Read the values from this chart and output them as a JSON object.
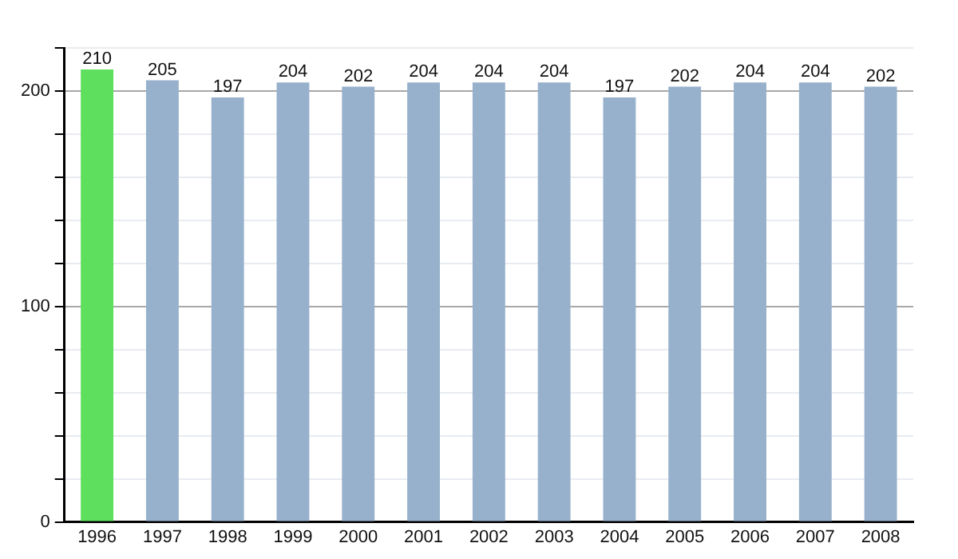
{
  "chart_data": {
    "type": "bar",
    "categories": [
      "1996",
      "1997",
      "1998",
      "1999",
      "2000",
      "2001",
      "2002",
      "2003",
      "2004",
      "2005",
      "2006",
      "2007",
      "2008"
    ],
    "values": [
      210,
      205,
      197,
      204,
      202,
      204,
      204,
      204,
      197,
      202,
      204,
      204,
      202
    ],
    "colors": [
      "#5ee05e",
      "#97b1cc",
      "#97b1cc",
      "#97b1cc",
      "#97b1cc",
      "#97b1cc",
      "#97b1cc",
      "#97b1cc",
      "#97b1cc",
      "#97b1cc",
      "#97b1cc",
      "#97b1cc",
      "#97b1cc"
    ],
    "ylim": [
      0,
      220
    ],
    "yticks": [
      0,
      {
        "value": 20,
        "label": null
      },
      {
        "value": 40,
        "label": null
      },
      {
        "value": 60,
        "label": null
      },
      {
        "value": 80,
        "label": null
      },
      100,
      {
        "value": 120,
        "label": null
      },
      {
        "value": 140,
        "label": null
      },
      {
        "value": 160,
        "label": null
      },
      {
        "value": 180,
        "label": null
      },
      200,
      {
        "value": 220,
        "label": null
      }
    ],
    "grid": "y",
    "data_labels": true,
    "legend": false
  }
}
